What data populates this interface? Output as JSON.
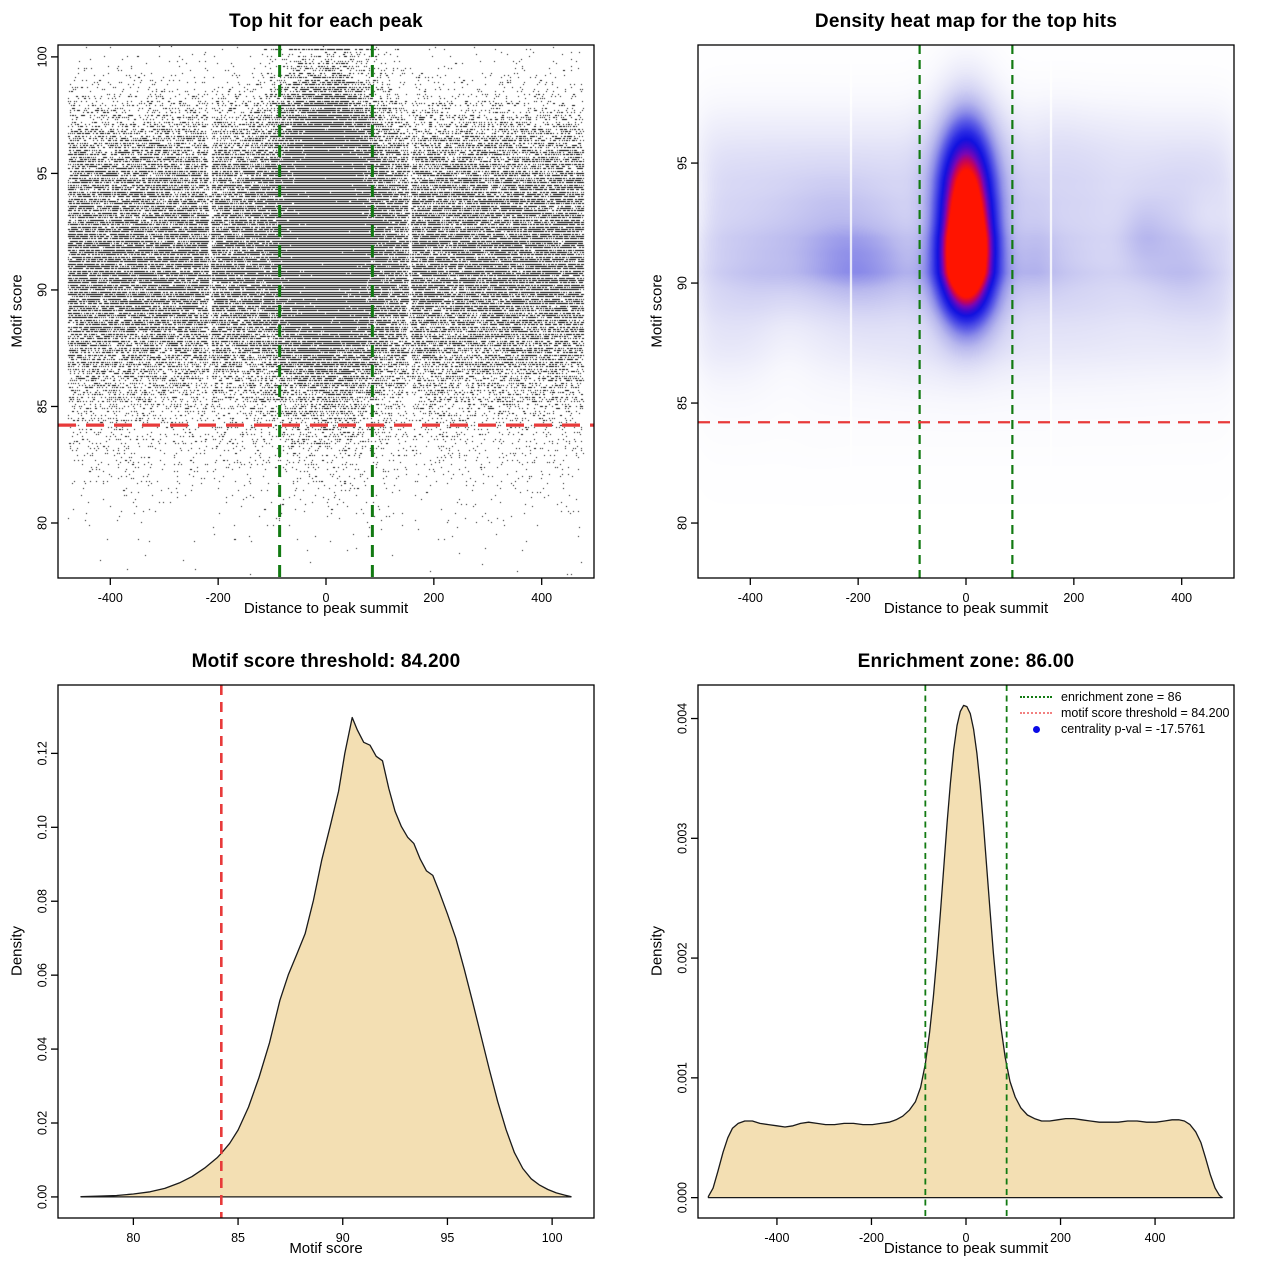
{
  "figure": {
    "background": "#ffffff",
    "panel_size": 640,
    "accent_green": "#127a12",
    "accent_red": "#e83a3a",
    "area_fill": "#f3dfb3"
  },
  "stats": {
    "motif_score_threshold": 84.2,
    "enrichment_zone": 86,
    "centrality_p_val": -17.5761
  },
  "chart_data": [
    {
      "id": "top-hit-scatter",
      "type": "scatter",
      "title": "Top hit for each peak",
      "xlabel": "Distance to peak summit",
      "ylabel": "Motif score",
      "xlim": [
        -497,
        497
      ],
      "ylim": [
        77.64,
        100.51
      ],
      "xticks": [
        -400,
        -200,
        0,
        200,
        400
      ],
      "xtick_labels": [
        "-400",
        "-200",
        "0",
        "200",
        "400"
      ],
      "yticks": [
        80,
        85,
        90,
        95,
        100
      ],
      "ytick_labels": [
        "80",
        "85",
        "90",
        "95",
        "100"
      ],
      "grid": false,
      "points": {
        "n": 95000,
        "color": "#000000",
        "seed": 1234,
        "background_x_range": [
          -478,
          478
        ],
        "cluster_fraction": 0.3,
        "cluster_x_sd": 52,
        "cluster_y_shift": 1.3,
        "score_quantum": 0.1,
        "artifact_gaps_x": [
          -215,
          156
        ],
        "note": "top motif hit per ChIP peak; motif score marginal follows panel-3 density, enriched cluster centered on summit"
      },
      "vlines": [
        {
          "x": -86,
          "color": "#127a12",
          "width": 3,
          "dash": [
            12,
            8
          ],
          "label": "enrichment zone"
        },
        {
          "x": 86,
          "color": "#127a12",
          "width": 3,
          "dash": [
            12,
            8
          ],
          "label": "enrichment zone"
        }
      ],
      "hlines": [
        {
          "y": 84.2,
          "color": "#e83a3a",
          "width": 3.2,
          "dash": [
            18,
            10
          ],
          "label": "motif score threshold"
        }
      ]
    },
    {
      "id": "density-heatmap",
      "type": "heatmap",
      "title": "Density heat map for the top hits",
      "xlabel": "Distance to peak summit",
      "ylabel": "Motif score",
      "xlim": [
        -497,
        497
      ],
      "ylim": [
        77.71,
        99.92
      ],
      "xticks": [
        -400,
        -200,
        0,
        200,
        400
      ],
      "xtick_labels": [
        "-400",
        "-200",
        "0",
        "200",
        "400"
      ],
      "yticks": [
        80,
        85,
        90,
        95
      ],
      "ytick_labels": [
        "80",
        "85",
        "90",
        "95"
      ],
      "grid": false,
      "color_ramp": [
        {
          "t": 0.0,
          "c": "#ffffff"
        },
        {
          "t": 0.06,
          "c": "#f7f7fd"
        },
        {
          "t": 0.14,
          "c": "#e9e9f9"
        },
        {
          "t": 0.24,
          "c": "#d4d4f4"
        },
        {
          "t": 0.34,
          "c": "#b9b9ee"
        },
        {
          "t": 0.44,
          "c": "#9191e9"
        },
        {
          "t": 0.54,
          "c": "#5b5be6"
        },
        {
          "t": 0.64,
          "c": "#2c2ce4"
        },
        {
          "t": 0.72,
          "c": "#1111e0"
        },
        {
          "t": 0.79,
          "c": "#3c0bd0"
        },
        {
          "t": 0.86,
          "c": "#7a06b4"
        },
        {
          "t": 0.92,
          "c": "#c00360"
        },
        {
          "t": 1.0,
          "c": "#ff1400"
        }
      ],
      "background_weight": 0.335,
      "edge_rolloff": {
        "center": 500,
        "softness": 14
      },
      "cluster": {
        "weight": 1.15,
        "x_sd": 40,
        "lobes": [
          {
            "y": 93.7,
            "sd": 2.2,
            "a": 1.0
          },
          {
            "y": 90.7,
            "sd": 1.9,
            "a": 1.05
          },
          {
            "y": 96.6,
            "sd": 1.8,
            "a": 0.22
          }
        ]
      },
      "mottle": {
        "seed": 77,
        "bumps": 48,
        "amp": 0.3
      },
      "artifact_lines_x": [
        -215,
        156
      ],
      "vlines": [
        {
          "x": -86,
          "color": "#127a12",
          "width": 2.2,
          "dash": [
            9,
            6
          ],
          "label": "enrichment zone"
        },
        {
          "x": 86,
          "color": "#127a12",
          "width": 2.2,
          "dash": [
            9,
            6
          ],
          "label": "enrichment zone"
        }
      ],
      "hlines": [
        {
          "y": 84.2,
          "color": "#e83a3a",
          "width": 2.2,
          "dash": [
            12,
            8
          ],
          "label": "motif score threshold"
        }
      ]
    },
    {
      "id": "motif-score-density",
      "type": "area",
      "title": "Motif score threshold: 84.200",
      "xlabel": "Motif score",
      "ylabel": "Density",
      "xlim": [
        76.4,
        102.0
      ],
      "ylim": [
        -0.0057,
        0.1385
      ],
      "xticks": [
        80,
        85,
        90,
        95,
        100
      ],
      "xtick_labels": [
        "80",
        "85",
        "90",
        "95",
        "100"
      ],
      "yticks": [
        0,
        0.02,
        0.04,
        0.06,
        0.08,
        0.1,
        0.12
      ],
      "ytick_labels": [
        "0.00",
        "0.02",
        "0.04",
        "0.06",
        "0.08",
        "0.10",
        "0.12"
      ],
      "grid": false,
      "fill": "#f3dfb3",
      "stroke": "#1a1a1a",
      "curve": [
        [
          77.5,
          0.0001
        ],
        [
          78.3,
          0.0002
        ],
        [
          79.2,
          0.0004
        ],
        [
          80.0,
          0.0008
        ],
        [
          80.8,
          0.0014
        ],
        [
          81.5,
          0.0023
        ],
        [
          82.2,
          0.0038
        ],
        [
          82.8,
          0.0055
        ],
        [
          83.4,
          0.0078
        ],
        [
          84.0,
          0.0106
        ],
        [
          84.2,
          0.0118
        ],
        [
          84.6,
          0.0145
        ],
        [
          85.0,
          0.0181
        ],
        [
          85.5,
          0.0243
        ],
        [
          86.0,
          0.0323
        ],
        [
          86.5,
          0.0417
        ],
        [
          87.0,
          0.0532
        ],
        [
          87.4,
          0.0601
        ],
        [
          87.8,
          0.0656
        ],
        [
          88.2,
          0.0712
        ],
        [
          88.6,
          0.0802
        ],
        [
          89.0,
          0.0912
        ],
        [
          89.4,
          0.1003
        ],
        [
          89.8,
          0.1098
        ],
        [
          90.1,
          0.12
        ],
        [
          90.45,
          0.1297
        ],
        [
          90.7,
          0.1263
        ],
        [
          91.0,
          0.123
        ],
        [
          91.3,
          0.1222
        ],
        [
          91.6,
          0.1192
        ],
        [
          91.9,
          0.118
        ],
        [
          92.2,
          0.1105
        ],
        [
          92.5,
          0.1043
        ],
        [
          92.8,
          0.1002
        ],
        [
          93.1,
          0.0973
        ],
        [
          93.4,
          0.0956
        ],
        [
          93.7,
          0.0914
        ],
        [
          94.0,
          0.0882
        ],
        [
          94.3,
          0.087
        ],
        [
          94.6,
          0.0827
        ],
        [
          95.0,
          0.0766
        ],
        [
          95.4,
          0.07
        ],
        [
          95.8,
          0.0617
        ],
        [
          96.2,
          0.0528
        ],
        [
          96.6,
          0.0437
        ],
        [
          97.0,
          0.0345
        ],
        [
          97.4,
          0.0258
        ],
        [
          97.8,
          0.0182
        ],
        [
          98.2,
          0.012
        ],
        [
          98.6,
          0.0077
        ],
        [
          99.0,
          0.0049
        ],
        [
          99.4,
          0.0032
        ],
        [
          99.8,
          0.002
        ],
        [
          100.2,
          0.0011
        ],
        [
          100.6,
          0.0005
        ],
        [
          100.9,
          0.0001
        ]
      ],
      "vlines": [
        {
          "x": 84.2,
          "color": "#e83a3a",
          "width": 2.6,
          "dash": [
            10,
            7
          ],
          "label": "motif score threshold"
        }
      ],
      "hlines": []
    },
    {
      "id": "summit-distance-density",
      "type": "area",
      "title": "Enrichment zone: 86.00",
      "xlabel": "Distance to peak summit",
      "ylabel": "Density",
      "xlim": [
        -567,
        567
      ],
      "ylim": [
        -0.00017,
        0.00428
      ],
      "xticks": [
        -400,
        -200,
        0,
        200,
        400
      ],
      "xtick_labels": [
        "-400",
        "-200",
        "0",
        "200",
        "400"
      ],
      "yticks": [
        0,
        0.001,
        0.002,
        0.003,
        0.004
      ],
      "ytick_labels": [
        "0.000",
        "0.001",
        "0.002",
        "0.003",
        "0.004"
      ],
      "grid": false,
      "fill": "#f3dfb3",
      "stroke": "#1a1a1a",
      "curve": [
        [
          -545,
          1e-05
        ],
        [
          -535,
          8e-05
        ],
        [
          -525,
          0.00022
        ],
        [
          -514,
          0.00038
        ],
        [
          -504,
          0.0005
        ],
        [
          -494,
          0.00058
        ],
        [
          -482,
          0.00062
        ],
        [
          -468,
          0.00064
        ],
        [
          -452,
          0.00064
        ],
        [
          -436,
          0.00062
        ],
        [
          -418,
          0.00061
        ],
        [
          -400,
          0.0006
        ],
        [
          -383,
          0.00059
        ],
        [
          -366,
          0.0006
        ],
        [
          -350,
          0.00062
        ],
        [
          -333,
          0.00063
        ],
        [
          -315,
          0.00062
        ],
        [
          -297,
          0.00061
        ],
        [
          -278,
          0.00061
        ],
        [
          -258,
          0.00062
        ],
        [
          -238,
          0.00062
        ],
        [
          -218,
          0.00061
        ],
        [
          -198,
          0.00061
        ],
        [
          -180,
          0.00062
        ],
        [
          -163,
          0.00063
        ],
        [
          -148,
          0.00065
        ],
        [
          -134,
          0.00068
        ],
        [
          -120,
          0.00073
        ],
        [
          -107,
          0.0008
        ],
        [
          -96,
          0.00092
        ],
        [
          -86,
          0.00112
        ],
        [
          -77,
          0.00138
        ],
        [
          -69,
          0.00168
        ],
        [
          -61,
          0.00204
        ],
        [
          -54,
          0.00239
        ],
        [
          -47,
          0.00276
        ],
        [
          -40,
          0.00313
        ],
        [
          -33,
          0.00346
        ],
        [
          -26,
          0.00374
        ],
        [
          -19,
          0.00394
        ],
        [
          -12,
          0.00406
        ],
        [
          -5,
          0.00411
        ],
        [
          2,
          0.0041
        ],
        [
          9,
          0.00404
        ],
        [
          16,
          0.00391
        ],
        [
          23,
          0.00371
        ],
        [
          30,
          0.00344
        ],
        [
          37,
          0.00311
        ],
        [
          44,
          0.00275
        ],
        [
          51,
          0.00239
        ],
        [
          58,
          0.00204
        ],
        [
          66,
          0.0017
        ],
        [
          74,
          0.00142
        ],
        [
          83,
          0.00117
        ],
        [
          93,
          0.00097
        ],
        [
          104,
          0.00084
        ],
        [
          116,
          0.00075
        ],
        [
          130,
          0.00069
        ],
        [
          145,
          0.00066
        ],
        [
          160,
          0.00064
        ],
        [
          177,
          0.00064
        ],
        [
          194,
          0.00065
        ],
        [
          211,
          0.00066
        ],
        [
          228,
          0.00066
        ],
        [
          245,
          0.00065
        ],
        [
          263,
          0.00064
        ],
        [
          282,
          0.00063
        ],
        [
          302,
          0.00063
        ],
        [
          322,
          0.00063
        ],
        [
          342,
          0.00064
        ],
        [
          362,
          0.00064
        ],
        [
          382,
          0.00063
        ],
        [
          402,
          0.00063
        ],
        [
          420,
          0.00064
        ],
        [
          436,
          0.00065
        ],
        [
          450,
          0.00065
        ],
        [
          462,
          0.00064
        ],
        [
          474,
          0.00061
        ],
        [
          486,
          0.00055
        ],
        [
          497,
          0.00046
        ],
        [
          507,
          0.00033
        ],
        [
          517,
          0.00019
        ],
        [
          527,
          8e-05
        ],
        [
          536,
          2e-05
        ],
        [
          542,
          0.0
        ]
      ],
      "vlines": [
        {
          "x": -86,
          "color": "#127a12",
          "width": 1.8,
          "dash": [
            6,
            4.5
          ],
          "label": "enrichment zone"
        },
        {
          "x": 86,
          "color": "#127a12",
          "width": 1.8,
          "dash": [
            6,
            4.5
          ],
          "label": "enrichment zone"
        }
      ],
      "hlines": [],
      "legend": {
        "items": [
          {
            "label": "enrichment zone = 86",
            "marker": "dotted-line",
            "color": "#127a12"
          },
          {
            "label": "motif score threshold = 84.200",
            "marker": "dotted-line",
            "color": "#f28080"
          },
          {
            "label": "centrality p-val = -17.5761",
            "marker": "dot",
            "color": "#0a0ae6"
          }
        ]
      }
    }
  ]
}
